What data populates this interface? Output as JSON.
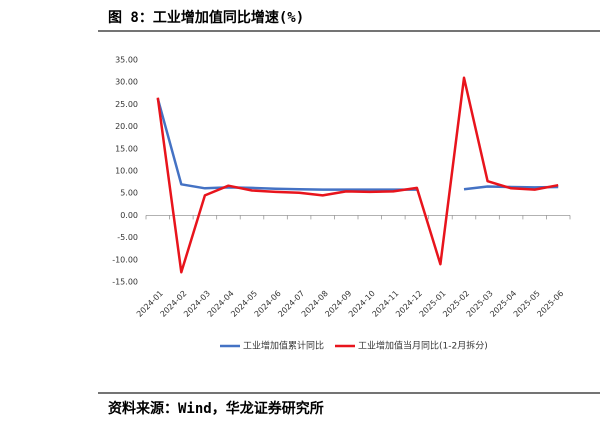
{
  "chart_data": {
    "type": "line",
    "title": "图 8：工业增加值同比增速(%)",
    "source": "资料来源：Wind，华龙证券研究所",
    "categories": [
      "2024-01",
      "2024-02",
      "2024-03",
      "2024-04",
      "2024-05",
      "2024-06",
      "2024-07",
      "2024-08",
      "2024-09",
      "2024-10",
      "2024-11",
      "2024-12",
      "2025-01",
      "2025-02",
      "2025-03",
      "2025-04",
      "2025-05",
      "2025-06"
    ],
    "series": [
      {
        "name": "工业增加值累计同比",
        "color": "#4472c4",
        "values": [
          26.3,
          7.0,
          6.1,
          6.3,
          6.2,
          6.0,
          5.9,
          5.8,
          5.8,
          5.8,
          5.8,
          5.8,
          null,
          5.9,
          6.5,
          6.4,
          6.3,
          6.4
        ]
      },
      {
        "name": "工业增加值当月同比(1-2月拆分)",
        "color": "#e8141c",
        "values": [
          26.5,
          -12.8,
          4.5,
          6.7,
          5.6,
          5.3,
          5.1,
          4.5,
          5.4,
          5.3,
          5.4,
          6.2,
          -11.0,
          31.0,
          7.7,
          6.1,
          5.8,
          6.8
        ]
      }
    ],
    "ylim": [
      -15,
      35
    ],
    "yticks": [
      {
        "value": -15,
        "label": "-15.00"
      },
      {
        "value": -10,
        "label": "-10.00"
      },
      {
        "value": -5,
        "label": "-5.00"
      },
      {
        "value": 0,
        "label": "0.00"
      },
      {
        "value": 5,
        "label": "5.00"
      },
      {
        "value": 10,
        "label": "10.00"
      },
      {
        "value": 15,
        "label": "15.00"
      },
      {
        "value": 20,
        "label": "20.00"
      },
      {
        "value": 25,
        "label": "25.00"
      },
      {
        "value": 30,
        "label": "30.00"
      },
      {
        "value": 35,
        "label": "35.00"
      }
    ],
    "grid": false,
    "legend": "bottom"
  }
}
